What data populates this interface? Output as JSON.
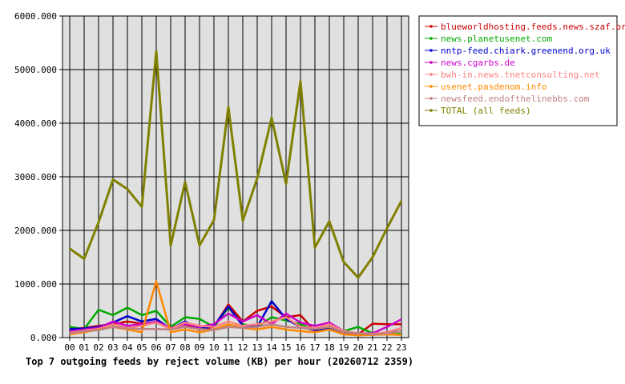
{
  "chart_data": {
    "type": "line",
    "title": "Top 7 outgoing feeds by reject volume (KB) per hour (20260712 2359)",
    "x": [
      "00",
      "01",
      "02",
      "03",
      "04",
      "05",
      "06",
      "07",
      "08",
      "09",
      "10",
      "11",
      "12",
      "13",
      "14",
      "15",
      "16",
      "17",
      "18",
      "19",
      "20",
      "21",
      "22",
      "23"
    ],
    "ylim": [
      0,
      6000
    ],
    "yticks": [
      "0.000",
      "1000.000",
      "2000.000",
      "3000.000",
      "4000.000",
      "5000.000",
      "6000.000"
    ],
    "grid": true,
    "legend_position": "top-right",
    "series": [
      {
        "name": "blueworldhosting.feeds.news.szaf.org",
        "color": "#cc0000",
        "values": [
          150,
          180,
          220,
          250,
          300,
          260,
          280,
          180,
          250,
          150,
          200,
          620,
          300,
          500,
          580,
          380,
          420,
          120,
          200,
          100,
          60,
          260,
          250,
          250
        ]
      },
      {
        "name": "news.planetusenet.com",
        "color": "#00aa00",
        "values": [
          200,
          160,
          520,
          420,
          560,
          420,
          500,
          200,
          380,
          350,
          200,
          560,
          250,
          200,
          380,
          320,
          250,
          150,
          150,
          120,
          200,
          80,
          60,
          70
        ]
      },
      {
        "name": "nntp-feed.chiark.greenend.org.uk",
        "color": "#0000cc",
        "values": [
          160,
          170,
          200,
          280,
          400,
          300,
          350,
          160,
          300,
          160,
          220,
          580,
          220,
          200,
          680,
          350,
          200,
          140,
          180,
          90,
          70,
          80,
          90,
          180
        ]
      },
      {
        "name": "news.cgarbs.de",
        "color": "#cc00cc",
        "values": [
          120,
          150,
          180,
          300,
          220,
          250,
          300,
          180,
          250,
          200,
          250,
          450,
          300,
          420,
          250,
          450,
          280,
          220,
          280,
          120,
          80,
          80,
          200,
          340
        ]
      },
      {
        "name": "bwh-in.news.tnetconsulting.net",
        "color": "#ff8080",
        "values": [
          90,
          130,
          160,
          250,
          180,
          220,
          280,
          160,
          280,
          220,
          200,
          300,
          220,
          250,
          300,
          380,
          200,
          180,
          250,
          120,
          80,
          70,
          100,
          180
        ]
      },
      {
        "name": "usenet.pasdenom.info",
        "color": "#ff8800",
        "values": [
          60,
          100,
          150,
          200,
          150,
          100,
          1050,
          100,
          150,
          100,
          150,
          250,
          180,
          150,
          200,
          150,
          120,
          100,
          150,
          60,
          40,
          50,
          60,
          50
        ]
      },
      {
        "name": "newsfeed.endofthelinebbs.com",
        "color": "#c08080",
        "values": [
          80,
          120,
          140,
          200,
          170,
          160,
          160,
          150,
          200,
          160,
          140,
          200,
          180,
          200,
          250,
          200,
          180,
          160,
          200,
          100,
          80,
          60,
          80,
          120
        ]
      },
      {
        "name": "TOTAL (all feeds)",
        "color": "#808000",
        "values": [
          1660,
          1470,
          2150,
          2950,
          2770,
          2440,
          5340,
          1720,
          2900,
          1720,
          2190,
          4300,
          2180,
          2970,
          4100,
          2870,
          4780,
          1680,
          2170,
          1410,
          1120,
          1500,
          2040,
          2550
        ]
      }
    ]
  }
}
